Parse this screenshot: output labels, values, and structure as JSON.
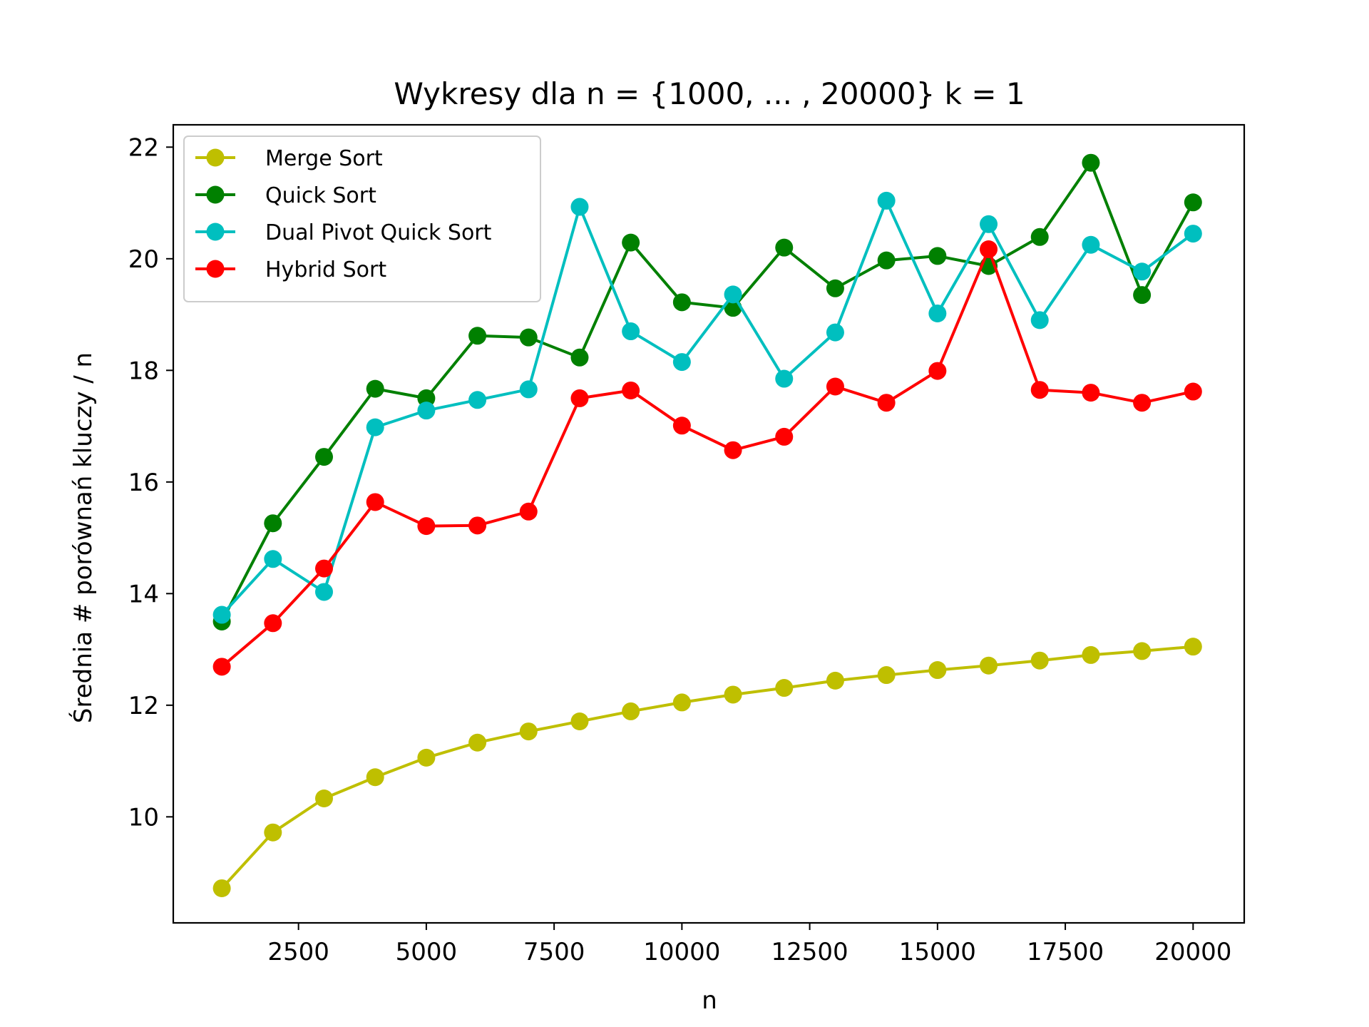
{
  "chart_data": {
    "type": "line",
    "title": "Wykresy dla n = {1000, ... , 20000} k = 1",
    "xlabel": "n",
    "ylabel": "Średnia # porównań kluczy / n",
    "xlim": [
      50,
      21000
    ],
    "ylim": [
      8.1,
      22.4
    ],
    "xticks": [
      2500,
      5000,
      7500,
      10000,
      12500,
      15000,
      17500,
      20000
    ],
    "yticks": [
      10,
      12,
      14,
      16,
      18,
      20,
      22
    ],
    "grid": false,
    "legend_position": "top-left",
    "x": [
      1000,
      2000,
      3000,
      4000,
      5000,
      6000,
      7000,
      8000,
      9000,
      10000,
      11000,
      12000,
      13000,
      14000,
      15000,
      16000,
      17000,
      18000,
      19000,
      20000
    ],
    "series": [
      {
        "name": "Merge Sort",
        "color": "#bfbf00",
        "values": [
          8.72,
          9.72,
          10.33,
          10.71,
          11.06,
          11.33,
          11.53,
          11.71,
          11.89,
          12.05,
          12.19,
          12.31,
          12.44,
          12.54,
          12.63,
          12.71,
          12.8,
          12.9,
          12.97,
          13.05
        ]
      },
      {
        "name": "Quick Sort",
        "color": "#008000",
        "values": [
          13.5,
          15.26,
          16.45,
          17.67,
          17.5,
          18.62,
          18.59,
          18.23,
          20.29,
          19.22,
          19.12,
          20.2,
          19.47,
          19.97,
          20.05,
          19.87,
          20.39,
          21.72,
          19.35,
          21.01
        ]
      },
      {
        "name": "Dual Pivot Quick Sort",
        "color": "#00bfbf",
        "values": [
          13.62,
          14.62,
          14.03,
          16.98,
          17.28,
          17.47,
          17.66,
          20.93,
          18.7,
          18.15,
          19.36,
          17.85,
          18.68,
          21.04,
          19.02,
          20.62,
          18.9,
          20.25,
          19.77,
          20.45
        ]
      },
      {
        "name": "Hybrid Sort",
        "color": "#ff0000",
        "values": [
          12.69,
          13.47,
          14.45,
          15.64,
          15.21,
          15.22,
          15.47,
          17.5,
          17.64,
          17.01,
          16.57,
          16.81,
          17.71,
          17.42,
          17.99,
          20.17,
          17.65,
          17.6,
          17.42,
          17.62
        ]
      }
    ]
  }
}
